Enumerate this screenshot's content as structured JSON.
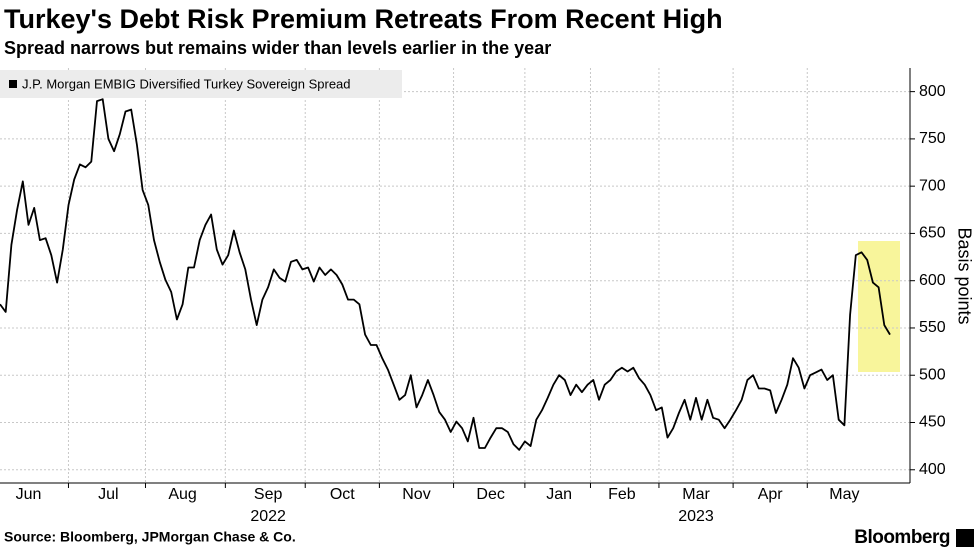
{
  "chart_data": {
    "type": "line",
    "title": "Turkey's Debt Risk Premium Retreats From Recent High",
    "subtitle": "Spread narrows but remains wider than levels earlier in the year",
    "source": "Source: Bloomberg, JPMorgan Chase & Co.",
    "brand": "Bloomberg",
    "y_axis_label": "Basis points",
    "year_labels": [
      {
        "label": "2022",
        "category": "Sep"
      },
      {
        "label": "2023",
        "category": "Mar"
      }
    ],
    "ylim": [
      386,
      825
    ],
    "yticks": [
      400,
      450,
      500,
      550,
      600,
      650,
      700,
      750,
      800
    ],
    "grid": true,
    "legend": "top-left",
    "categories": [
      null,
      null,
      null,
      null,
      null,
      "Jun",
      null,
      null,
      null,
      null,
      null,
      null,
      null,
      null,
      null,
      null,
      null,
      null,
      null,
      "Jul",
      null,
      null,
      null,
      null,
      null,
      null,
      null,
      null,
      null,
      null,
      null,
      null,
      "Aug",
      null,
      null,
      null,
      null,
      null,
      null,
      null,
      null,
      null,
      null,
      null,
      null,
      null,
      null,
      "Sep",
      null,
      null,
      null,
      null,
      null,
      null,
      null,
      null,
      null,
      null,
      null,
      null,
      "Oct",
      null,
      null,
      null,
      null,
      null,
      null,
      null,
      null,
      null,
      null,
      null,
      null,
      "Nov",
      null,
      null,
      null,
      null,
      null,
      null,
      null,
      null,
      null,
      null,
      null,
      null,
      "Dec",
      null,
      null,
      null,
      null,
      null,
      null,
      null,
      null,
      null,
      null,
      null,
      "Jan",
      null,
      null,
      null,
      null,
      null,
      null,
      null,
      null,
      null,
      null,
      "Feb",
      null,
      null,
      null,
      null,
      null,
      null,
      null,
      null,
      null,
      null,
      null,
      null,
      "Mar",
      null,
      null,
      null,
      null,
      null,
      null,
      null,
      null,
      null,
      null,
      null,
      null,
      "Apr",
      null,
      null,
      null,
      null,
      null,
      null,
      null,
      null,
      null,
      null,
      null,
      null,
      "May",
      null,
      null,
      null,
      null,
      null,
      null,
      null,
      null
    ],
    "series": [
      {
        "name": "J.P. Morgan EMBIG Diversified Turkey Sovereign Spread",
        "color": "#000000",
        "values": [
          575,
          567,
          638,
          675,
          705,
          659,
          677,
          643,
          645,
          627,
          598,
          633,
          680,
          707,
          723,
          720,
          726,
          790,
          792,
          750,
          737,
          755,
          779,
          781,
          744,
          696,
          680,
          643,
          620,
          601,
          588,
          559,
          575,
          614,
          614,
          643,
          659,
          670,
          633,
          617,
          627,
          653,
          630,
          612,
          580,
          553,
          580,
          593,
          612,
          603,
          599,
          620,
          622,
          612,
          614,
          599,
          614,
          606,
          612,
          606,
          596,
          580,
          580,
          575,
          543,
          532,
          532,
          518,
          506,
          490,
          474,
          479,
          500,
          466,
          479,
          495,
          479,
          461,
          453,
          440,
          451,
          444,
          430,
          455,
          423,
          423,
          434,
          444,
          444,
          440,
          427,
          421,
          430,
          425,
          453,
          463,
          476,
          490,
          500,
          495,
          479,
          490,
          482,
          490,
          495,
          474,
          490,
          495,
          504,
          508,
          504,
          508,
          497,
          490,
          479,
          463,
          466,
          434,
          444,
          460,
          474,
          453,
          476,
          453,
          474,
          455,
          453,
          444,
          453,
          463,
          474,
          495,
          500,
          486,
          486,
          484,
          460,
          474,
          490,
          518,
          508,
          486,
          500,
          503,
          506,
          495,
          500,
          453,
          447,
          564,
          627,
          630,
          622,
          598,
          593,
          553,
          543
        ]
      }
    ]
  }
}
